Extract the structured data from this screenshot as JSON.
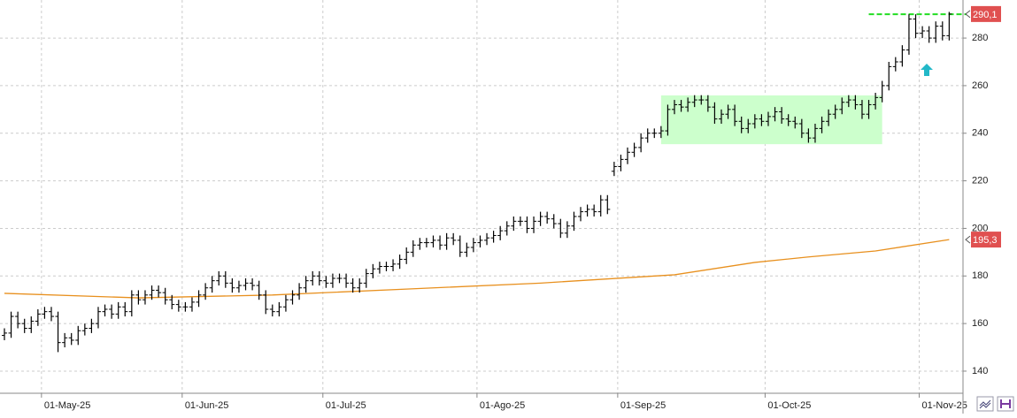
{
  "chart_data": {
    "type": "ohlc",
    "categories": [
      null,
      null,
      null,
      null,
      null,
      "01-May-25",
      null,
      null,
      null,
      null,
      null,
      null,
      null,
      null,
      null,
      null,
      null,
      null,
      null,
      null,
      null,
      null,
      null,
      null,
      null,
      null,
      "01-Jun-25",
      null,
      null,
      null,
      null,
      null,
      null,
      null,
      null,
      null,
      null,
      null,
      null,
      null,
      null,
      null,
      null,
      null,
      null,
      null,
      null,
      "01-Jul-25",
      null,
      null,
      null,
      null,
      null,
      null,
      null,
      null,
      null,
      null,
      null,
      null,
      null,
      null,
      null,
      null,
      null,
      null,
      null,
      null,
      null,
      null,
      "01-Ago-25",
      null,
      null,
      null,
      null,
      null,
      null,
      null,
      null,
      null,
      null,
      null,
      null,
      null,
      null,
      null,
      null,
      null,
      null,
      null,
      null,
      "01-Sep-25",
      null,
      null,
      null,
      null,
      null,
      null,
      null,
      null,
      null,
      null,
      null,
      null,
      null,
      null,
      null,
      null,
      null,
      null,
      null,
      null,
      null,
      "01-Oct-25",
      null,
      null,
      null,
      null,
      null,
      null,
      null,
      null,
      null,
      null,
      null,
      null,
      null,
      null,
      null,
      null,
      null,
      null,
      null,
      null,
      null,
      null,
      "01-Nov-25",
      null,
      null,
      null,
      null,
      null
    ],
    "ohlc": {
      "color": "#000000",
      "open": [
        155,
        156,
        163,
        160,
        158,
        161,
        164,
        165,
        163,
        152,
        154,
        153,
        157,
        158,
        160,
        165,
        166,
        164,
        167,
        165,
        172,
        170,
        172,
        174,
        173,
        170,
        168,
        167,
        167,
        169,
        172,
        175,
        178,
        180,
        177,
        175,
        176,
        177,
        176,
        172,
        166,
        165,
        167,
        170,
        172,
        175,
        178,
        180,
        178,
        177,
        179,
        179,
        177,
        175,
        177,
        181,
        183,
        184,
        184,
        185,
        187,
        190,
        193,
        194,
        194,
        195,
        193,
        196,
        195,
        190,
        192,
        194,
        195,
        196,
        197,
        199,
        201,
        203,
        203,
        200,
        203,
        205,
        204,
        202,
        198,
        201,
        205,
        207,
        208,
        207,
        212,
        224,
        226,
        229,
        232,
        234,
        238,
        240,
        240,
        241,
        250,
        252,
        251,
        253,
        254,
        254,
        251,
        246,
        248,
        250,
        245,
        242,
        244,
        246,
        245,
        247,
        249,
        246,
        245,
        244,
        240,
        238,
        242,
        245,
        248,
        250,
        253,
        254,
        252,
        248,
        252,
        255,
        260,
        268,
        270,
        275,
        288,
        282,
        283,
        280,
        285,
        281
      ],
      "high": [
        158,
        165,
        165,
        162,
        163,
        166,
        167,
        167,
        165,
        156,
        156,
        159,
        160,
        162,
        167,
        168,
        168,
        169,
        169,
        174,
        174,
        174,
        176,
        176,
        175,
        172,
        170,
        169,
        171,
        174,
        177,
        180,
        182,
        182,
        179,
        178,
        179,
        179,
        178,
        174,
        168,
        169,
        172,
        174,
        177,
        180,
        182,
        182,
        180,
        181,
        181,
        181,
        179,
        179,
        183,
        185,
        186,
        186,
        187,
        189,
        192,
        195,
        196,
        196,
        197,
        197,
        198,
        198,
        197,
        194,
        196,
        197,
        198,
        199,
        201,
        203,
        205,
        205,
        205,
        205,
        207,
        207,
        206,
        204,
        203,
        207,
        209,
        210,
        210,
        214,
        214,
        228,
        231,
        234,
        236,
        240,
        242,
        242,
        243,
        252,
        254,
        254,
        255,
        256,
        256,
        256,
        253,
        250,
        252,
        252,
        247,
        246,
        248,
        248,
        249,
        251,
        251,
        248,
        247,
        246,
        242,
        244,
        247,
        250,
        252,
        255,
        256,
        256,
        254,
        254,
        257,
        262,
        270,
        272,
        277,
        290,
        290,
        285,
        285,
        287,
        287,
        291
      ],
      "low": [
        153,
        154,
        158,
        156,
        156,
        159,
        162,
        161,
        148,
        150,
        151,
        151,
        155,
        156,
        158,
        163,
        162,
        162,
        163,
        163,
        168,
        168,
        170,
        171,
        168,
        166,
        165,
        165,
        165,
        167,
        170,
        173,
        176,
        175,
        173,
        173,
        174,
        174,
        170,
        164,
        163,
        163,
        165,
        168,
        170,
        173,
        176,
        176,
        175,
        175,
        177,
        175,
        173,
        173,
        175,
        179,
        181,
        182,
        182,
        183,
        185,
        188,
        191,
        192,
        192,
        191,
        191,
        193,
        188,
        188,
        190,
        192,
        193,
        194,
        195,
        197,
        199,
        201,
        198,
        198,
        201,
        202,
        200,
        196,
        196,
        199,
        203,
        205,
        205,
        205,
        206,
        222,
        224,
        227,
        230,
        232,
        236,
        238,
        238,
        239,
        248,
        249,
        249,
        251,
        252,
        249,
        244,
        244,
        246,
        243,
        240,
        240,
        242,
        243,
        243,
        245,
        244,
        243,
        242,
        238,
        236,
        236,
        240,
        243,
        246,
        248,
        251,
        250,
        246,
        246,
        250,
        253,
        258,
        266,
        268,
        273,
        280,
        280,
        278,
        278,
        279,
        279
      ],
      "close": [
        156,
        163,
        160,
        158,
        161,
        164,
        165,
        163,
        152,
        154,
        153,
        157,
        158,
        160,
        165,
        166,
        164,
        167,
        165,
        172,
        170,
        172,
        174,
        173,
        170,
        168,
        167,
        167,
        169,
        172,
        175,
        178,
        180,
        177,
        175,
        176,
        177,
        176,
        172,
        166,
        165,
        167,
        170,
        172,
        175,
        178,
        180,
        178,
        177,
        179,
        179,
        177,
        175,
        177,
        181,
        183,
        184,
        184,
        185,
        187,
        190,
        193,
        194,
        194,
        195,
        193,
        196,
        195,
        190,
        192,
        194,
        195,
        196,
        197,
        199,
        201,
        203,
        203,
        200,
        203,
        205,
        204,
        202,
        198,
        201,
        205,
        207,
        208,
        207,
        212,
        208,
        226,
        229,
        232,
        234,
        238,
        240,
        240,
        241,
        250,
        252,
        251,
        253,
        254,
        254,
        251,
        246,
        248,
        250,
        245,
        242,
        244,
        246,
        245,
        247,
        249,
        246,
        245,
        244,
        240,
        238,
        242,
        245,
        248,
        250,
        253,
        254,
        252,
        248,
        252,
        255,
        260,
        268,
        270,
        275,
        288,
        282,
        283,
        280,
        285,
        281,
        290.1
      ]
    },
    "moving_average": {
      "color": "#e8901e",
      "x": [
        0,
        20,
        40,
        60,
        80,
        100,
        112,
        120,
        130,
        141
      ],
      "values": [
        172.7,
        170.8,
        172,
        174.5,
        177,
        180.5,
        185.7,
        188,
        190.5,
        195.3
      ]
    },
    "price_labels": [
      {
        "value": 290.1,
        "label": "290,1",
        "color": "#e05050"
      },
      {
        "value": 195.3,
        "label": "195,3",
        "color": "#e05050"
      }
    ],
    "resistance": {
      "value": 290,
      "from": 129,
      "color": "#22dd22"
    },
    "range_box": {
      "x0": 98,
      "x1": 131,
      "y0": 235.4,
      "y1": 255.9,
      "color": "#ccffcc"
    },
    "ylim": [
      130.7,
      296
    ],
    "yticks": [
      140,
      160,
      180,
      200,
      220,
      240,
      260,
      280
    ],
    "grid": true
  }
}
